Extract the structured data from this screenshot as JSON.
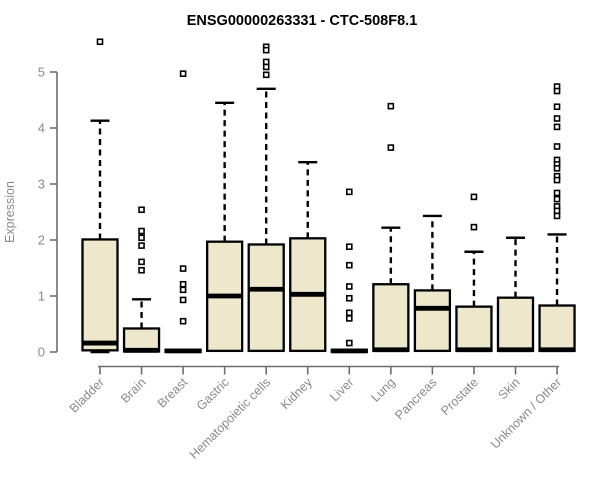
{
  "chart_data": {
    "type": "boxplot",
    "title": "ENSG00000263331 - CTC-508F8.1",
    "xlabel": "",
    "ylabel": "Expression",
    "ylim": [
      0,
      5
    ],
    "yticks": [
      0,
      1,
      2,
      3,
      4,
      5
    ],
    "grid": false,
    "legend": false,
    "categories": [
      "Bladder",
      "Brain",
      "Breast",
      "Gastric",
      "Hematopoietic cells",
      "Kidney",
      "Liver",
      "Lung",
      "Pancreas",
      "Prostate",
      "Skin",
      "Unknown / Other"
    ],
    "boxes": [
      {
        "category": "Bladder",
        "low": 0,
        "q1": 0.03,
        "median": 0.16,
        "q3": 2.01,
        "high": 4.13,
        "outliers": [
          5.54
        ]
      },
      {
        "category": "Brain",
        "low": 0,
        "q1": 0.01,
        "median": 0.03,
        "q3": 0.42,
        "high": 0.94,
        "outliers": [
          2.54,
          2.16,
          2.04,
          1.9,
          1.61,
          1.46
        ]
      },
      {
        "category": "Breast",
        "low": 0,
        "q1": 0.0,
        "median": 0.02,
        "q3": 0.04,
        "high": 0.04,
        "outliers": [
          4.97,
          1.49,
          1.21,
          1.11,
          0.93,
          0.55
        ]
      },
      {
        "category": "Gastric",
        "low": 0,
        "q1": 0.02,
        "median": 1.0,
        "q3": 1.97,
        "high": 4.45,
        "outliers": []
      },
      {
        "category": "Hematopoietic cells",
        "low": 0,
        "q1": 0.02,
        "median": 1.12,
        "q3": 1.92,
        "high": 4.7,
        "outliers": [
          5.45,
          5.39,
          5.18,
          5.09,
          4.95
        ]
      },
      {
        "category": "Kidney",
        "low": 0,
        "q1": 0.02,
        "median": 1.03,
        "q3": 2.03,
        "high": 3.39,
        "outliers": []
      },
      {
        "category": "Liver",
        "low": 0,
        "q1": 0.0,
        "median": 0.02,
        "q3": 0.04,
        "high": 0.04,
        "outliers": [
          2.86,
          1.88,
          1.55,
          1.17,
          0.96,
          0.7,
          0.6,
          0.16
        ]
      },
      {
        "category": "Lung",
        "low": 0,
        "q1": 0.02,
        "median": 0.04,
        "q3": 1.21,
        "high": 2.22,
        "outliers": [
          4.39,
          3.65
        ]
      },
      {
        "category": "Pancreas",
        "low": 0,
        "q1": 0.02,
        "median": 0.78,
        "q3": 1.1,
        "high": 2.43,
        "outliers": []
      },
      {
        "category": "Prostate",
        "low": 0,
        "q1": 0.02,
        "median": 0.04,
        "q3": 0.81,
        "high": 1.79,
        "outliers": [
          2.77,
          2.23
        ]
      },
      {
        "category": "Skin",
        "low": 0,
        "q1": 0.02,
        "median": 0.04,
        "q3": 0.97,
        "high": 2.04,
        "outliers": []
      },
      {
        "category": "Unknown / Other",
        "low": 0,
        "q1": 0.02,
        "median": 0.04,
        "q3": 0.83,
        "high": 2.1,
        "outliers": [
          4.74,
          4.66,
          4.38,
          4.17,
          4.02,
          3.67,
          3.43,
          3.35,
          3.28,
          3.14,
          3.07,
          2.84,
          2.73,
          2.6,
          2.52,
          2.43
        ]
      }
    ],
    "colors": {
      "box_fill": "#ede8cb",
      "box_border": "#000000",
      "median": "#000000",
      "whisker": "#000000",
      "outlier_fill": "#ffffff",
      "outlier_border": "#000000",
      "axis_line": "#6e6e6e",
      "label_text": "#8a8a8a",
      "title_text": "#000000",
      "background": "#ffffff"
    }
  }
}
